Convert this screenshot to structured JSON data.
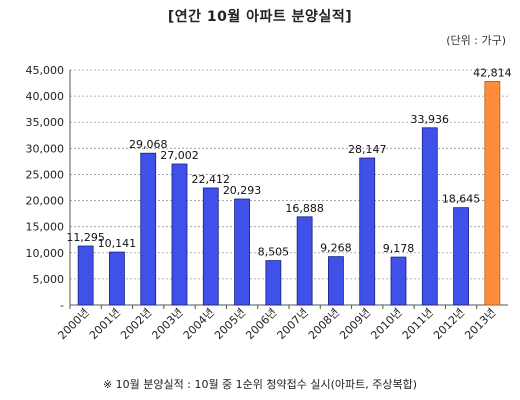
{
  "chart_data": {
    "type": "bar",
    "title": "[연간 10월 아파트 분양실적]",
    "unit_label": "(단위 : 가구)",
    "note": "※ 10월 분양실적 : 10월 중 1순위 청약접수 실시(아파트, 주상복합)",
    "categories": [
      "2000년",
      "2001년",
      "2002년",
      "2003년",
      "2004년",
      "2005년",
      "2006년",
      "2007년",
      "2008년",
      "2009년",
      "2010년",
      "2011년",
      "2012년",
      "2013년"
    ],
    "values": [
      11295,
      10141,
      29068,
      27002,
      22412,
      20293,
      8505,
      16888,
      9268,
      28147,
      9178,
      33936,
      18645,
      42814
    ],
    "value_labels": [
      "11,295",
      "10,141",
      "29,068",
      "27,002",
      "22,412",
      "20,293",
      "8,505",
      "16,888",
      "9,268",
      "28,147",
      "9,178",
      "33,936",
      "18,645",
      "42,814"
    ],
    "ylim": [
      0,
      45000
    ],
    "y_ticks": [
      0,
      5000,
      10000,
      15000,
      20000,
      25000,
      30000,
      35000,
      40000,
      45000
    ],
    "y_tick_labels": [
      "-",
      "5,000",
      "10,000",
      "15,000",
      "20,000",
      "25,000",
      "30,000",
      "35,000",
      "40,000",
      "45,000"
    ],
    "grid": true,
    "colors": {
      "bar": "#3f51e8",
      "bar_highlight": "#ff8c3a",
      "bar_edge": "#1a237e",
      "highlight_edge": "#b85a12"
    },
    "highlight_index": 13
  }
}
